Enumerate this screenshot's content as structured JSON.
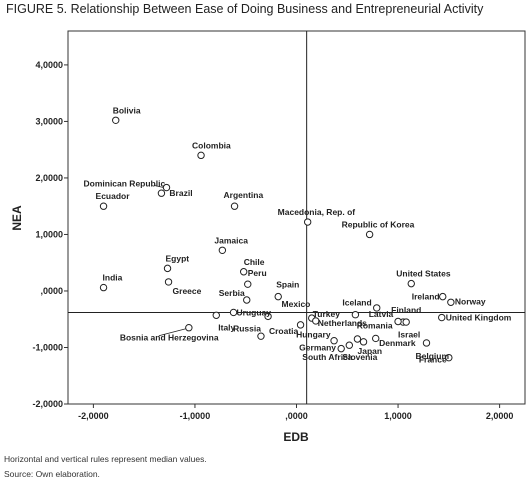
{
  "figure": {
    "title": "FIGURE 5. Relationship Between Ease of Doing Business and Entrepreneurial Activity",
    "note_median": "Horizontal and vertical rules represent median values.",
    "note_source": "Source: Own elaboration."
  },
  "chart_data": {
    "type": "scatter",
    "xlabel": "EDB",
    "ylabel": "NEA",
    "xlim": [
      -2.25,
      2.25
    ],
    "ylim": [
      -2.0,
      4.6
    ],
    "xticks": [
      -2.0,
      -1.0,
      0.0,
      1.0,
      2.0
    ],
    "yticks": [
      -2.0,
      -1.0,
      0.0,
      1.0,
      2.0,
      3.0,
      4.0
    ],
    "xtick_labels": [
      "-2,0000",
      "-1,0000",
      ",0000",
      "1,0000",
      "2,0000"
    ],
    "ytick_labels": [
      "-2,0000",
      "-1,0000",
      ",0000",
      "1,0000",
      "2,0000",
      "3,0000",
      "4,0000"
    ],
    "median_x": 0.1,
    "median_y": -0.38,
    "grid": false,
    "points": [
      {
        "label": "Bolivia",
        "x": -1.78,
        "y": 3.02
      },
      {
        "label": "Colombia",
        "x": -0.94,
        "y": 2.4
      },
      {
        "label": "Dominican Republic",
        "x": -1.28,
        "y": 1.83
      },
      {
        "label": "Brazil",
        "x": -1.33,
        "y": 1.73
      },
      {
        "label": "Ecuador",
        "x": -1.9,
        "y": 1.5
      },
      {
        "label": "Argentina",
        "x": -0.61,
        "y": 1.5
      },
      {
        "label": "Macedonia, Rep. of",
        "x": 0.11,
        "y": 1.22
      },
      {
        "label": "Republic of Korea",
        "x": 0.72,
        "y": 1.0
      },
      {
        "label": "Jamaica",
        "x": -0.73,
        "y": 0.72
      },
      {
        "label": "Egypt",
        "x": -1.27,
        "y": 0.4
      },
      {
        "label": "Chile",
        "x": -0.52,
        "y": 0.34
      },
      {
        "label": "Peru",
        "x": -0.48,
        "y": 0.12
      },
      {
        "label": "India",
        "x": -1.9,
        "y": 0.06
      },
      {
        "label": "Greece",
        "x": -1.26,
        "y": 0.16
      },
      {
        "label": "Serbia",
        "x": -0.49,
        "y": -0.16
      },
      {
        "label": "Spain",
        "x": -0.18,
        "y": -0.1
      },
      {
        "label": "Mexico",
        "x": 0.04,
        "y": -0.6
      },
      {
        "label": "Uruguay",
        "x": -0.62,
        "y": -0.38
      },
      {
        "label": "Italy",
        "x": -0.79,
        "y": -0.43
      },
      {
        "label": "Bosnia and Herzegovina",
        "x": -1.06,
        "y": -0.65
      },
      {
        "label": "Croatia",
        "x": -0.35,
        "y": -0.8
      },
      {
        "label": "Russia",
        "x": -0.28,
        "y": -0.45
      },
      {
        "label": "Hungary",
        "x": 0.37,
        "y": -0.88
      },
      {
        "label": "Turkey",
        "x": 0.15,
        "y": -0.48
      },
      {
        "label": "Netherlands",
        "x": 0.19,
        "y": -0.53
      },
      {
        "label": "Germany",
        "x": 0.44,
        "y": -1.02
      },
      {
        "label": "South Africa",
        "x": 0.52,
        "y": -0.96
      },
      {
        "label": "Slovenia",
        "x": 0.6,
        "y": -0.85
      },
      {
        "label": "Japan",
        "x": 0.66,
        "y": -0.9
      },
      {
        "label": "Romania",
        "x": 0.78,
        "y": -0.84
      },
      {
        "label": "Iceland",
        "x": 0.58,
        "y": -0.42
      },
      {
        "label": "Latvia",
        "x": 0.79,
        "y": -0.3
      },
      {
        "label": "Finland",
        "x": 1.05,
        "y": -0.55
      },
      {
        "label": "Israel",
        "x": 1.0,
        "y": -0.54
      },
      {
        "label": "Denmark",
        "x": 1.08,
        "y": -0.55
      },
      {
        "label": "United States",
        "x": 1.13,
        "y": 0.13
      },
      {
        "label": "Ireland",
        "x": 1.44,
        "y": -0.1
      },
      {
        "label": "Norway",
        "x": 1.52,
        "y": -0.2
      },
      {
        "label": "United Kingdom",
        "x": 1.43,
        "y": -0.47
      },
      {
        "label": "Belgium",
        "x": 1.28,
        "y": -0.92
      },
      {
        "label": "France",
        "x": 1.5,
        "y": -1.18
      }
    ]
  }
}
